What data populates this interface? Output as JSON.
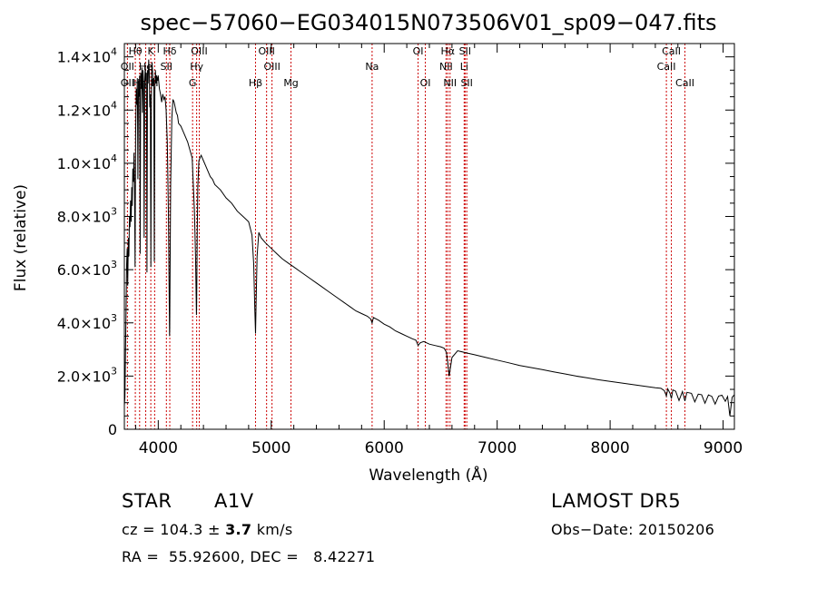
{
  "chart_data": {
    "type": "line",
    "title": "spec−57060−EG034015N073506V01_sp09−047.fits",
    "xlabel": "Wavelength (Å)",
    "ylabel": "Flux (relative)",
    "xlim": [
      3700,
      9100
    ],
    "ylim": [
      0,
      14500
    ],
    "x_ticks": [
      {
        "value": 4000,
        "label": "4000"
      },
      {
        "value": 5000,
        "label": "5000"
      },
      {
        "value": 6000,
        "label": "6000"
      },
      {
        "value": 7000,
        "label": "7000"
      },
      {
        "value": 8000,
        "label": "8000"
      },
      {
        "value": 9000,
        "label": "9000"
      }
    ],
    "y_ticks": [
      {
        "value": 0,
        "mant": "0",
        "exp": ""
      },
      {
        "value": 2000,
        "mant": "2.0×10",
        "exp": "3"
      },
      {
        "value": 4000,
        "mant": "4.0×10",
        "exp": "3"
      },
      {
        "value": 6000,
        "mant": "6.0×10",
        "exp": "3"
      },
      {
        "value": 8000,
        "mant": "8.0×10",
        "exp": "3"
      },
      {
        "value": 10000,
        "mant": "1.0×10",
        "exp": "4"
      },
      {
        "value": 12000,
        "mant": "1.2×10",
        "exp": "4"
      },
      {
        "value": 14000,
        "mant": "1.4×10",
        "exp": "4"
      }
    ],
    "line_color": "#000000",
    "marker_color": "#cc0000",
    "spectral_lines": [
      {
        "label": "Hθ",
        "wave": 3797,
        "row": 0
      },
      {
        "label": "K",
        "wave": 3934,
        "row": 0
      },
      {
        "label": "Hδ",
        "wave": 4102,
        "row": 0
      },
      {
        "label": "OIII",
        "wave": 4363,
        "row": 0
      },
      {
        "label": "OIII",
        "wave": 4959,
        "row": 0
      },
      {
        "label": "OI",
        "wave": 6300,
        "row": 0
      },
      {
        "label": "Hα",
        "wave": 6563,
        "row": 0
      },
      {
        "label": "SII",
        "wave": 6716,
        "row": 0
      },
      {
        "label": "CaII",
        "wave": 8542,
        "row": 0
      },
      {
        "label": "OII",
        "wave": 3727,
        "row": 1
      },
      {
        "label": "He",
        "wave": 3889,
        "row": 1
      },
      {
        "label": "SII",
        "wave": 4072,
        "row": 1
      },
      {
        "label": "Hγ",
        "wave": 4340,
        "row": 1
      },
      {
        "label": "OIII",
        "wave": 5007,
        "row": 1
      },
      {
        "label": "Na",
        "wave": 5893,
        "row": 1
      },
      {
        "label": "NII",
        "wave": 6548,
        "row": 1
      },
      {
        "label": "Li",
        "wave": 6708,
        "row": 1
      },
      {
        "label": "CaII",
        "wave": 8498,
        "row": 1
      },
      {
        "label": "OII",
        "wave": 3727,
        "row": 2
      },
      {
        "label": "Hη",
        "wave": 3835,
        "row": 2
      },
      {
        "label": "H",
        "wave": 3968,
        "row": 2
      },
      {
        "label": "G",
        "wave": 4304,
        "row": 2
      },
      {
        "label": "Hβ",
        "wave": 4861,
        "row": 2
      },
      {
        "label": "Mg",
        "wave": 5175,
        "row": 2
      },
      {
        "label": "OI",
        "wave": 6364,
        "row": 2
      },
      {
        "label": "NII",
        "wave": 6583,
        "row": 2
      },
      {
        "label": "SII",
        "wave": 6731,
        "row": 2
      },
      {
        "label": "CaII",
        "wave": 8662,
        "row": 2
      }
    ],
    "series": [
      {
        "x": [
          3700,
          3705,
          3710,
          3715,
          3720,
          3725,
          3730,
          3735,
          3740,
          3745,
          3750,
          3755,
          3760,
          3765,
          3770,
          3775,
          3780,
          3785,
          3790,
          3795,
          3800,
          3805,
          3810,
          3815,
          3820,
          3825,
          3830,
          3835,
          3840,
          3845,
          3850,
          3855,
          3860,
          3865,
          3870,
          3875,
          3880,
          3885,
          3890,
          3895,
          3900,
          3905,
          3910,
          3915,
          3920,
          3925,
          3930,
          3935,
          3940,
          3945,
          3950,
          3955,
          3960,
          3965,
          3970,
          3975,
          3980,
          3985,
          3990,
          3995,
          4000,
          4010,
          4020,
          4030,
          4040,
          4050,
          4060,
          4070,
          4080,
          4090,
          4095,
          4100,
          4102,
          4105,
          4110,
          4120,
          4130,
          4140,
          4150,
          4160,
          4170,
          4180,
          4200,
          4220,
          4240,
          4260,
          4280,
          4300,
          4320,
          4330,
          4335,
          4338,
          4340,
          4342,
          4345,
          4350,
          4360,
          4380,
          4400,
          4420,
          4440,
          4460,
          4480,
          4500,
          4550,
          4600,
          4650,
          4700,
          4750,
          4800,
          4830,
          4845,
          4855,
          4861,
          4866,
          4875,
          4890,
          4910,
          4950,
          5000,
          5050,
          5100,
          5150,
          5200,
          5250,
          5300,
          5350,
          5400,
          5450,
          5500,
          5550,
          5600,
          5650,
          5700,
          5750,
          5800,
          5850,
          5880,
          5893,
          5905,
          5950,
          6000,
          6050,
          6100,
          6150,
          6200,
          6250,
          6280,
          6300,
          6320,
          6350,
          6400,
          6450,
          6500,
          6530,
          6550,
          6563,
          6575,
          6600,
          6650,
          6700,
          6750,
          6800,
          6900,
          7000,
          7100,
          7200,
          7300,
          7400,
          7500,
          7600,
          7700,
          7800,
          7900,
          8000,
          8100,
          8200,
          8300,
          8400,
          8450,
          8480,
          8498,
          8510,
          8530,
          8542,
          8555,
          8580,
          8610,
          8640,
          8662,
          8680,
          8720,
          8750,
          8780,
          8810,
          8840,
          8870,
          8900,
          8930,
          8960,
          8990,
          9020,
          9040,
          9060,
          9080,
          9100
        ],
        "y": [
          900,
          1200,
          2800,
          4500,
          6200,
          6800,
          5400,
          7200,
          6500,
          8000,
          7600,
          8600,
          7800,
          9100,
          8400,
          9800,
          9300,
          10400,
          9000,
          6100,
          11000,
          12800,
          12200,
          13200,
          9400,
          13100,
          12500,
          13300,
          6600,
          13400,
          12800,
          13600,
          11900,
          13500,
          13000,
          7200,
          13000,
          13700,
          13100,
          13400,
          5900,
          13500,
          13000,
          13900,
          13500,
          12100,
          12600,
          6100,
          13300,
          13800,
          13400,
          12900,
          13200,
          6300,
          12700,
          13500,
          13000,
          13300,
          13200,
          13100,
          13300,
          12800,
          12600,
          12300,
          12600,
          12400,
          12500,
          12000,
          10800,
          8200,
          5600,
          3500,
          3800,
          6100,
          9200,
          11700,
          12400,
          12300,
          12100,
          11900,
          11800,
          11500,
          11400,
          11200,
          11000,
          10800,
          10500,
          10200,
          8200,
          6500,
          5200,
          4300,
          4600,
          5800,
          7400,
          9100,
          10100,
          10300,
          10100,
          9900,
          9700,
          9500,
          9400,
          9200,
          9000,
          8700,
          8500,
          8200,
          8000,
          7800,
          7300,
          6200,
          4500,
          3600,
          4700,
          6500,
          7400,
          7200,
          7000,
          6800,
          6600,
          6400,
          6250,
          6100,
          5950,
          5800,
          5650,
          5500,
          5350,
          5200,
          5050,
          4900,
          4750,
          4600,
          4450,
          4350,
          4250,
          4150,
          4000,
          4200,
          4100,
          3950,
          3850,
          3700,
          3600,
          3500,
          3400,
          3350,
          3150,
          3250,
          3300,
          3200,
          3150,
          3100,
          3050,
          2900,
          2500,
          2000,
          2700,
          2950,
          2900,
          2850,
          2800,
          2700,
          2600,
          2500,
          2400,
          2320,
          2240,
          2160,
          2080,
          2000,
          1930,
          1860,
          1800,
          1740,
          1680,
          1620,
          1560,
          1540,
          1450,
          1250,
          1520,
          1350,
          1150,
          1480,
          1430,
          1080,
          1420,
          1060,
          1390,
          1350,
          1030,
          1320,
          1300,
          980,
          1290,
          1240,
          950,
          1250,
          1280,
          1050,
          1230,
          500,
          1200,
          1300
        ]
      }
    ]
  },
  "info": {
    "class_label": "STAR",
    "subclass": "A1V",
    "survey": "LAMOST DR5",
    "redshift_prefix": "cz = 104.3 ± ",
    "redshift_err": "3.7",
    "redshift_unit": " km/s",
    "obs_date": "Obs−Date: 20150206",
    "coords": "RA =  55.92600, DEC =   8.42271"
  }
}
